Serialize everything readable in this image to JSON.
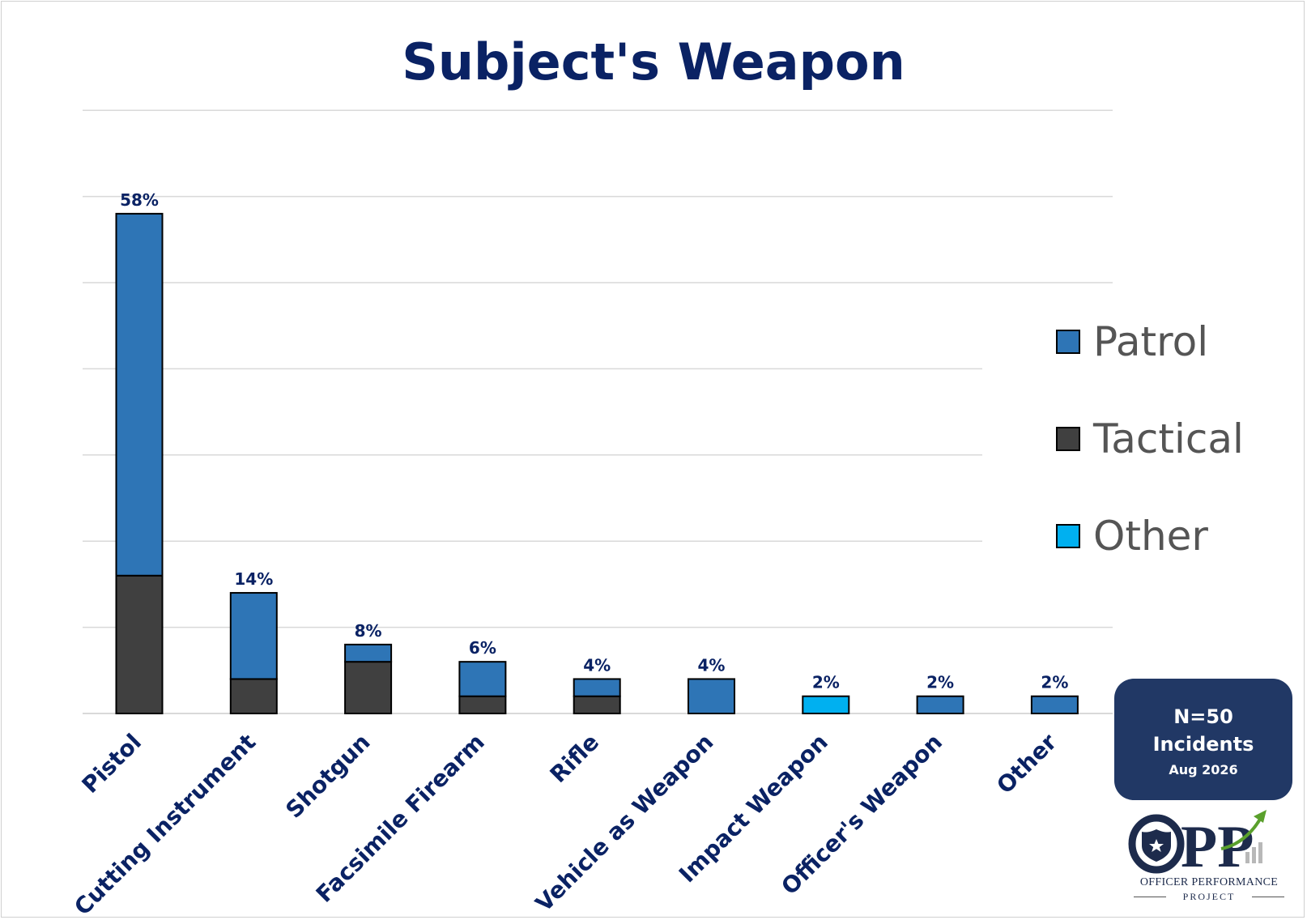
{
  "chart_data": {
    "type": "bar",
    "stacked": true,
    "title": "Subject's Weapon",
    "categories": [
      "Pistol",
      "Cutting Instrument",
      "Shotgun",
      "Facsimile Firearm",
      "Rifle",
      "Vehicle as Weapon",
      "Impact Weapon",
      "Officer's Weapon",
      "Other"
    ],
    "series": [
      {
        "name": "Tactical",
        "color": "#404040",
        "values": [
          32,
          8,
          12,
          4,
          4,
          0,
          0,
          0,
          0
        ]
      },
      {
        "name": "Patrol",
        "color": "#2e75b6",
        "values": [
          84,
          20,
          4,
          8,
          4,
          8,
          0,
          4,
          4
        ]
      },
      {
        "name": "Other",
        "color": "#00b0f0",
        "values": [
          0,
          0,
          0,
          0,
          0,
          0,
          4,
          0,
          0
        ]
      }
    ],
    "data_labels": [
      "58%",
      "14%",
      "8%",
      "6%",
      "4%",
      "4%",
      "2%",
      "2%",
      "2%"
    ],
    "ylim": [
      0,
      140
    ],
    "y_gridline_step": 20,
    "grid": true,
    "legend_position": "right",
    "legend_entries": [
      "Patrol",
      "Tactical",
      "Other"
    ],
    "legend_colors": [
      "#2e75b6",
      "#404040",
      "#00b0f0"
    ]
  },
  "info_box": {
    "n_label": "N=50",
    "incidents_label": "Incidents",
    "date_label": "Aug 2026"
  },
  "logo": {
    "letters": "OPP",
    "line1": "OFFICER PERFORMANCE",
    "line2": "PROJECT"
  },
  "colors": {
    "title": "#0a2264",
    "category_label": "#0a2264",
    "data_label": "#0a2264",
    "legend_text": "#555555",
    "info_box_bg": "#213865"
  }
}
